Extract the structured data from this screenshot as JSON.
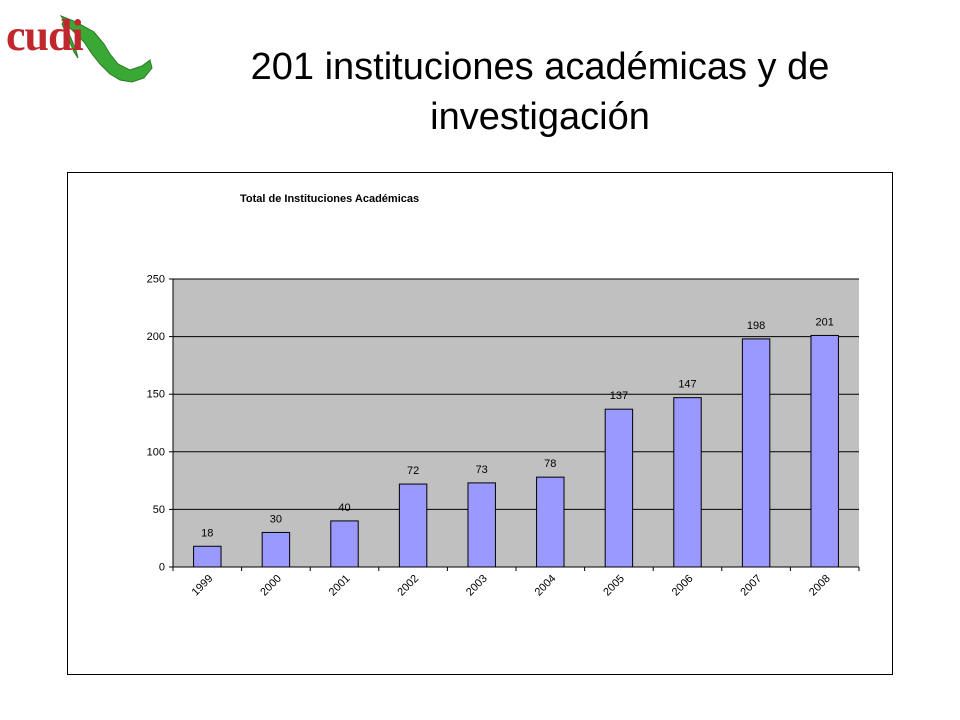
{
  "logo": {
    "text": "cudi"
  },
  "slide": {
    "title": "201 instituciones académicas y de investigación"
  },
  "colors": {
    "bar": "#9999ff",
    "plot_bg": "#c0c0c0",
    "logo_red": "#c0282d",
    "logo_green": "#3aa835"
  },
  "chart_data": {
    "type": "bar",
    "title": "Total de Instituciones Académicas",
    "xlabel": "",
    "ylabel": "",
    "categories": [
      "1999",
      "2000",
      "2001",
      "2002",
      "2003",
      "2004",
      "2005",
      "2006",
      "2007",
      "2008"
    ],
    "values": [
      18,
      30,
      40,
      72,
      73,
      78,
      137,
      147,
      198,
      201
    ],
    "ylim": [
      0,
      250
    ],
    "yticks": [
      0,
      50,
      100,
      150,
      200,
      250
    ],
    "grid": true,
    "legend": "none",
    "data_labels": true
  }
}
